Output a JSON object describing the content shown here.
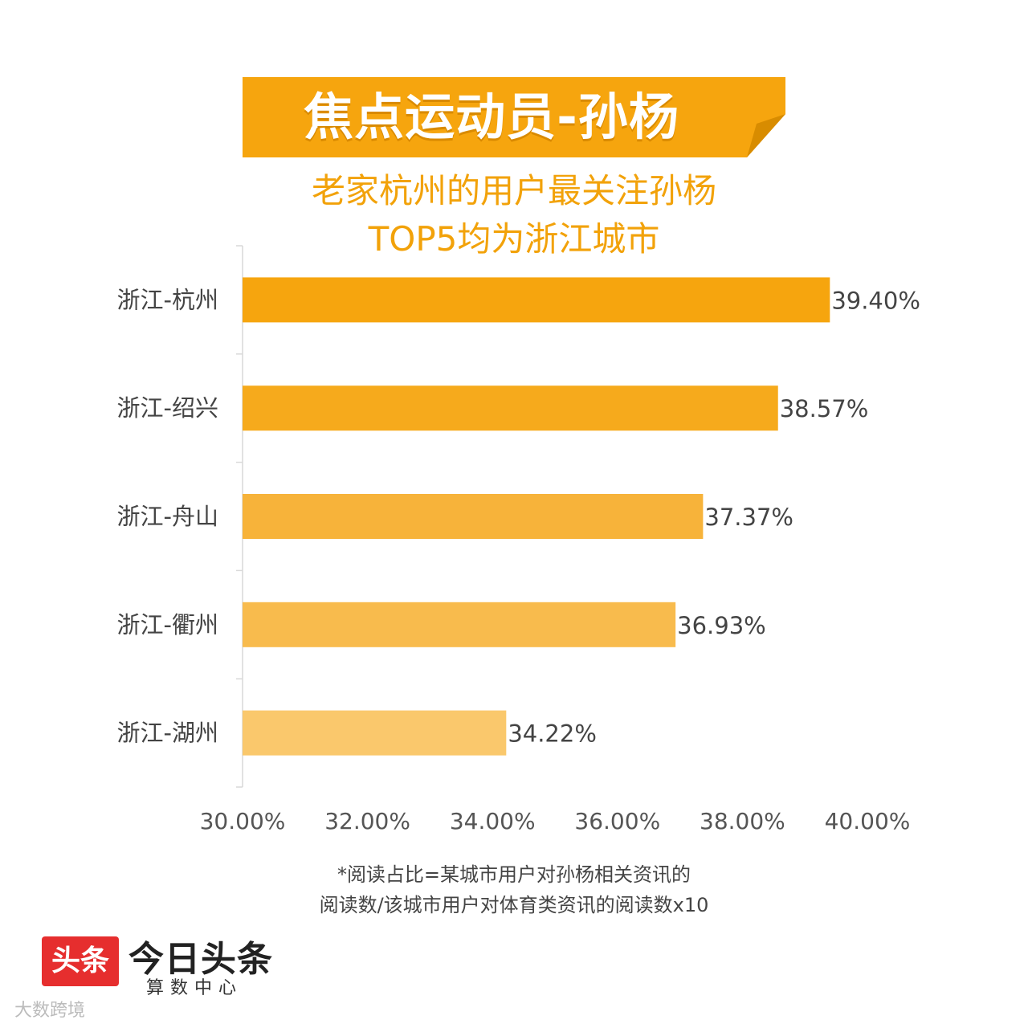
{
  "banner": {
    "title": "焦点运动员-孙杨"
  },
  "subtitle": {
    "line1": "老家杭州的用户最关注孙杨",
    "line2": "TOP5均为浙江城市"
  },
  "chart_data": {
    "type": "bar",
    "orientation": "horizontal",
    "categories": [
      "浙江-杭州",
      "浙江-绍兴",
      "浙江-舟山",
      "浙江-衢州",
      "浙江-湖州"
    ],
    "values": [
      39.4,
      38.57,
      37.37,
      36.93,
      34.22
    ],
    "value_labels": [
      "39.40%",
      "38.57%",
      "37.37%",
      "36.93%",
      "34.22%"
    ],
    "bar_colors": [
      "#f6a50e",
      "#f6aa1c",
      "#f7b33a",
      "#f8bb4d",
      "#fac86c"
    ],
    "xlim": [
      30,
      40
    ],
    "x_ticks": [
      "30.00%",
      "32.00%",
      "34.00%",
      "36.00%",
      "38.00%",
      "40.00%"
    ],
    "grid": false,
    "legend": "none"
  },
  "footnote": {
    "line1": "*阅读占比=某城市用户对孙杨相关资讯的",
    "line2": "阅读数/该城市用户对体育类资讯的阅读数x10"
  },
  "logo": {
    "badge": "头条",
    "name": "今日头条",
    "sub": "算数中心"
  },
  "watermark": "大数跨境",
  "colors": {
    "accent": "#f6a50e",
    "banner_fold": "#d88c00",
    "text": "#444444"
  }
}
